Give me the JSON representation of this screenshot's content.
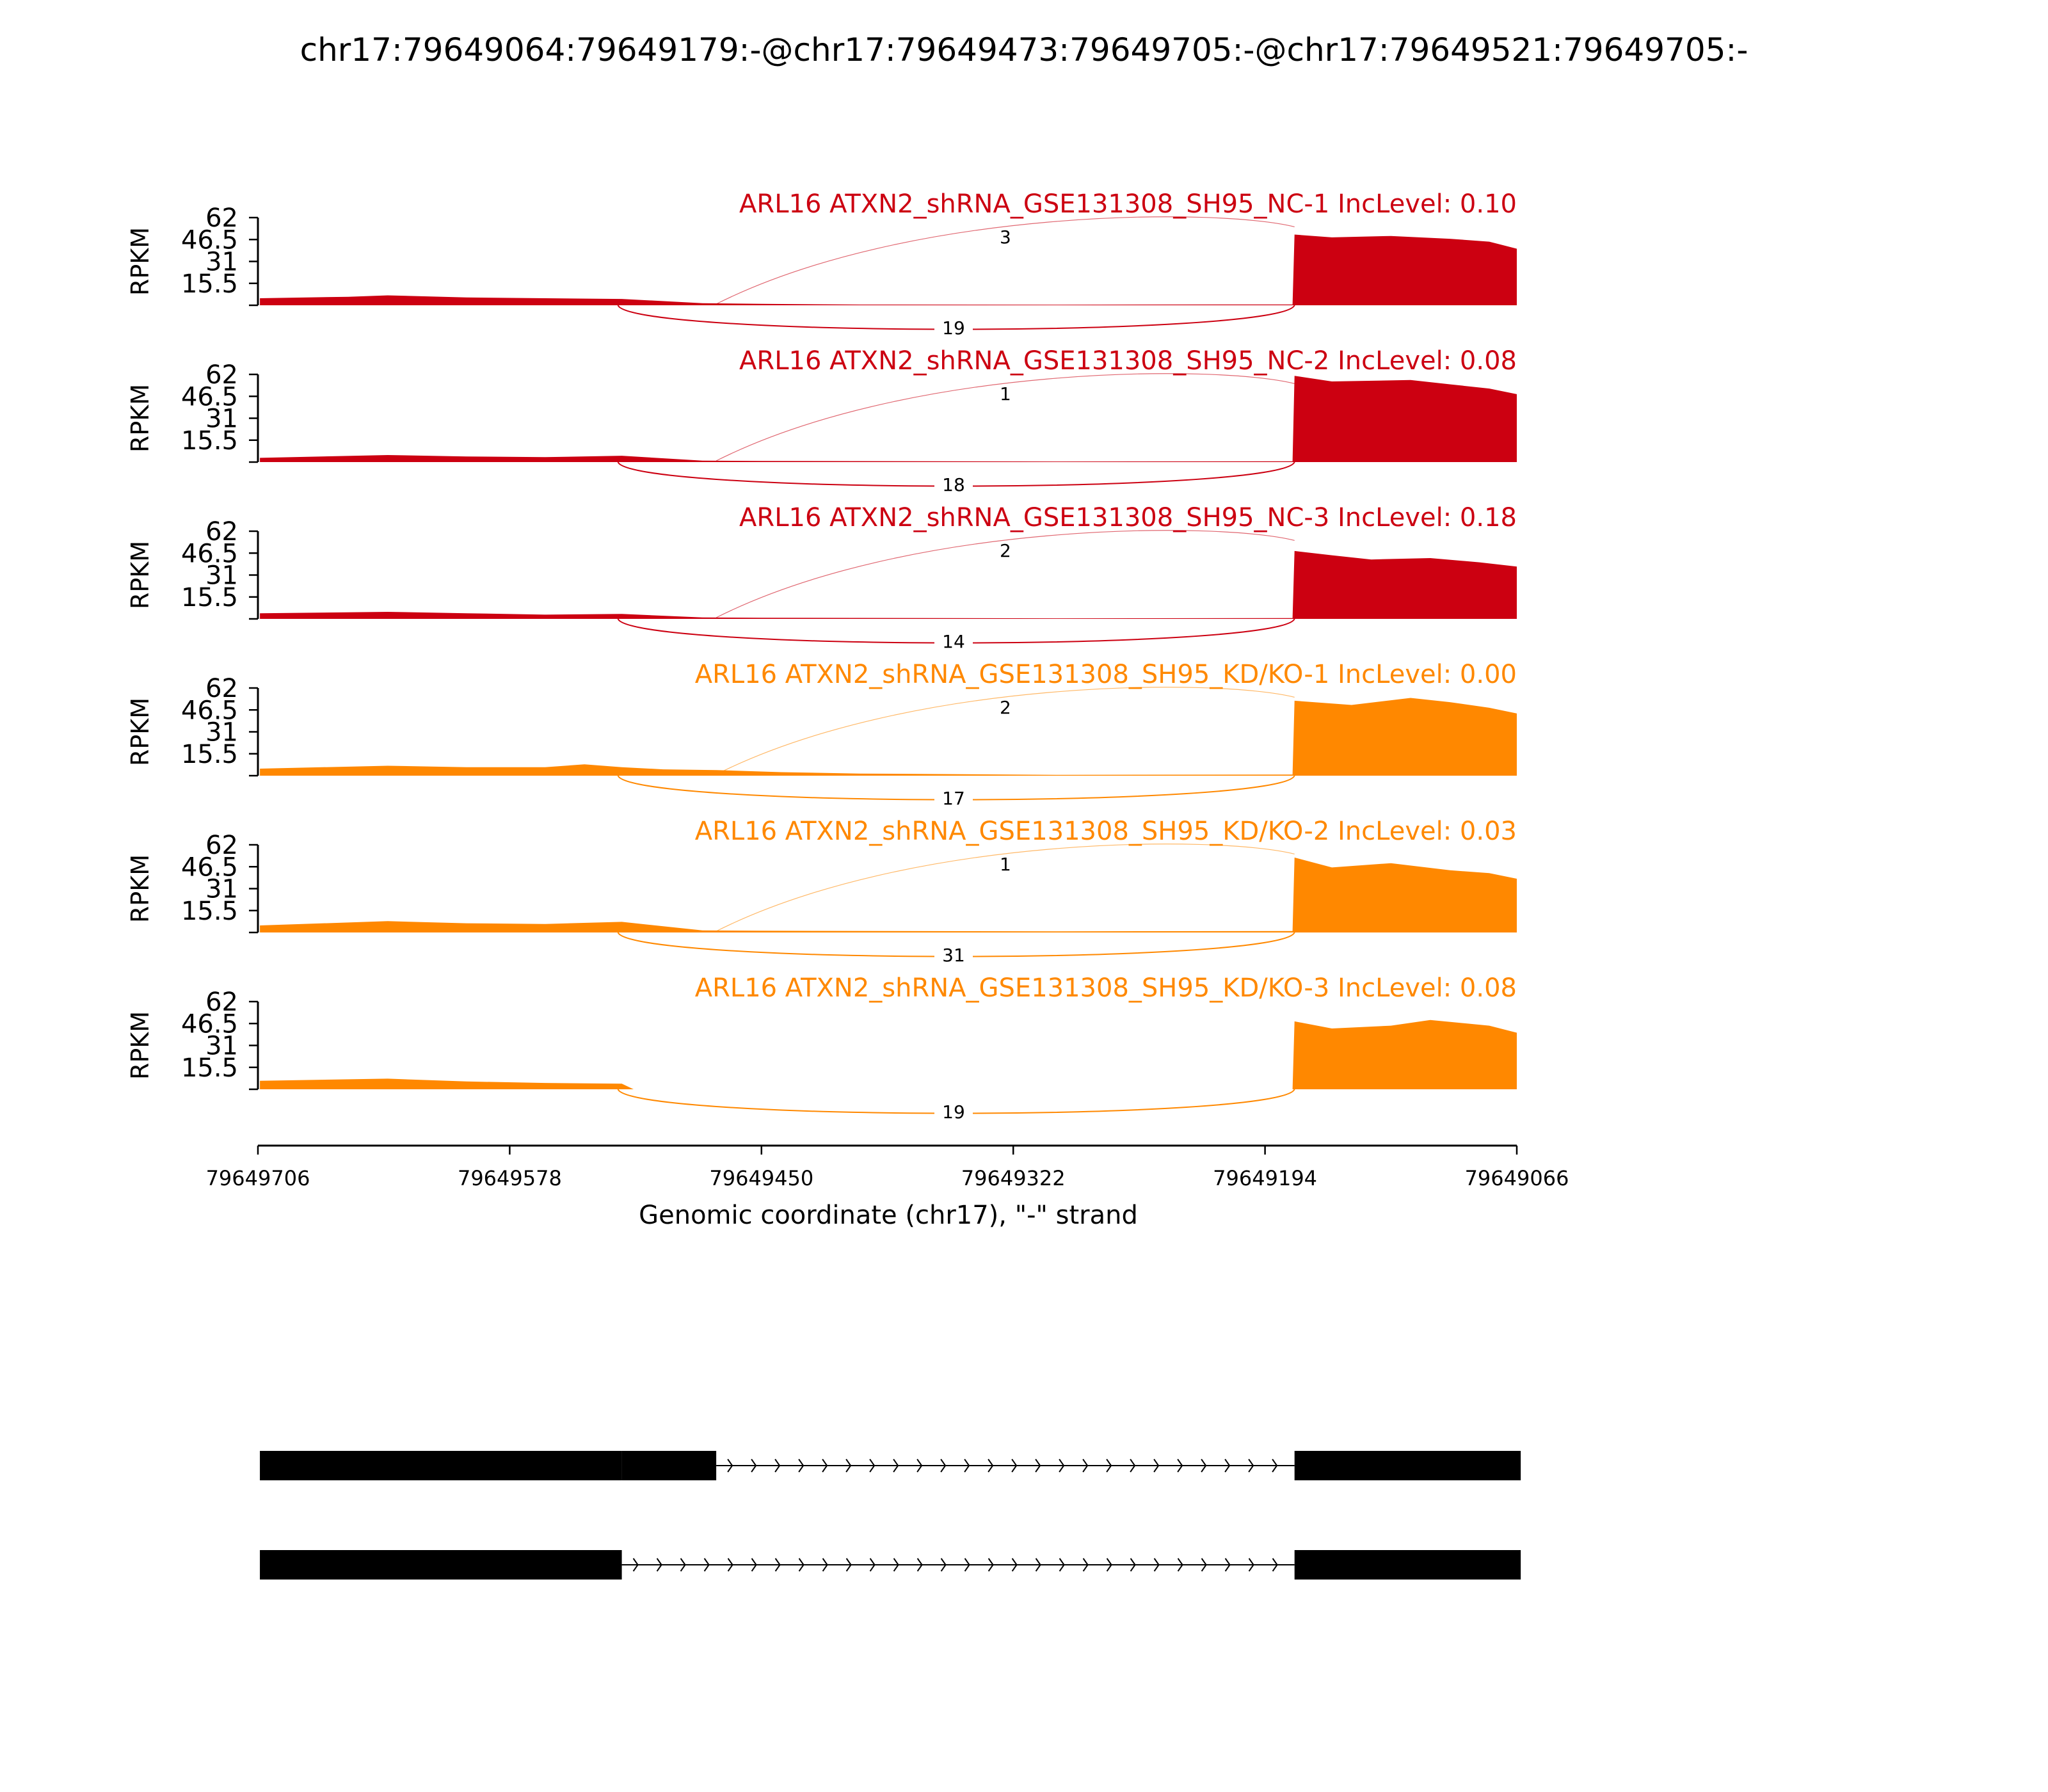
{
  "title": "chr17:79649064:79649179:-@chr17:79649473:79649705:-@chr17:79649521:79649705:-",
  "chart_data": {
    "type": "area",
    "title": "chr17:79649064:79649179:-@chr17:79649473:79649705:-@chr17:79649521:79649705:-",
    "ylabel": "RPKM",
    "xlabel": "Genomic coordinate (chr17), \"-\" strand",
    "x_range": [
      79649706,
      79649066
    ],
    "x_ticks": [
      "79649706",
      "79649578",
      "79649450",
      "79649322",
      "79649194",
      "79649066"
    ],
    "y_range": [
      0,
      62
    ],
    "y_ticks": [
      "62",
      "46.5",
      "31",
      "15.5"
    ],
    "exons": [
      {
        "start": 79649705,
        "end": 79649521
      },
      {
        "start": 79649521,
        "end": 79649473
      },
      {
        "start": 79649179,
        "end": 79649064
      }
    ],
    "tracks": [
      {
        "label": "ARL16 ATXN2_shRNA_GSE131308_SH95_NC-1 IncLevel: 0.10",
        "color": "#cc0011",
        "inclusion_junction_count": "3",
        "skipping_junction_count": "19",
        "coverage": [
          {
            "x": 79649705,
            "y": 5
          },
          {
            "x": 79649660,
            "y": 6
          },
          {
            "x": 79649640,
            "y": 7
          },
          {
            "x": 79649600,
            "y": 5.5
          },
          {
            "x": 79649560,
            "y": 5
          },
          {
            "x": 79649521,
            "y": 4.5
          },
          {
            "x": 79649480,
            "y": 1.5
          },
          {
            "x": 79649450,
            "y": 1
          },
          {
            "x": 79649400,
            "y": 0.5
          },
          {
            "x": 79649300,
            "y": 0.4
          },
          {
            "x": 79649200,
            "y": 0.6
          },
          {
            "x": 79649180,
            "y": 0.6
          },
          {
            "x": 79649179,
            "y": 50
          },
          {
            "x": 79649160,
            "y": 48
          },
          {
            "x": 79649130,
            "y": 49
          },
          {
            "x": 79649100,
            "y": 47
          },
          {
            "x": 79649080,
            "y": 45
          },
          {
            "x": 79649066,
            "y": 40
          }
        ]
      },
      {
        "label": "ARL16 ATXN2_shRNA_GSE131308_SH95_NC-2 IncLevel: 0.08",
        "color": "#cc0011",
        "inclusion_junction_count": "1",
        "skipping_junction_count": "18",
        "coverage": [
          {
            "x": 79649705,
            "y": 3
          },
          {
            "x": 79649640,
            "y": 5
          },
          {
            "x": 79649600,
            "y": 4
          },
          {
            "x": 79649560,
            "y": 3.5
          },
          {
            "x": 79649521,
            "y": 4.5
          },
          {
            "x": 79649480,
            "y": 1
          },
          {
            "x": 79649450,
            "y": 0.8
          },
          {
            "x": 79649300,
            "y": 0.4
          },
          {
            "x": 79649180,
            "y": 0.6
          },
          {
            "x": 79649179,
            "y": 61
          },
          {
            "x": 79649160,
            "y": 57
          },
          {
            "x": 79649120,
            "y": 58
          },
          {
            "x": 79649100,
            "y": 55
          },
          {
            "x": 79649080,
            "y": 52
          },
          {
            "x": 79649066,
            "y": 48
          }
        ]
      },
      {
        "label": "ARL16 ATXN2_shRNA_GSE131308_SH95_NC-3 IncLevel: 0.18",
        "color": "#cc0011",
        "inclusion_junction_count": "2",
        "skipping_junction_count": "14",
        "coverage": [
          {
            "x": 79649705,
            "y": 4
          },
          {
            "x": 79649640,
            "y": 5
          },
          {
            "x": 79649600,
            "y": 4
          },
          {
            "x": 79649560,
            "y": 3
          },
          {
            "x": 79649521,
            "y": 3.5
          },
          {
            "x": 79649480,
            "y": 1
          },
          {
            "x": 79649450,
            "y": 0.8
          },
          {
            "x": 79649300,
            "y": 0.4
          },
          {
            "x": 79649180,
            "y": 0.6
          },
          {
            "x": 79649179,
            "y": 48
          },
          {
            "x": 79649160,
            "y": 45
          },
          {
            "x": 79649140,
            "y": 42
          },
          {
            "x": 79649110,
            "y": 43
          },
          {
            "x": 79649085,
            "y": 40
          },
          {
            "x": 79649066,
            "y": 37
          }
        ]
      },
      {
        "label": "ARL16 ATXN2_shRNA_GSE131308_SH95_KD/KO-1 IncLevel: 0.00",
        "color": "#ff8800",
        "inclusion_junction_count": "2",
        "skipping_junction_count": "17",
        "coverage": [
          {
            "x": 79649705,
            "y": 5
          },
          {
            "x": 79649640,
            "y": 7
          },
          {
            "x": 79649600,
            "y": 6
          },
          {
            "x": 79649560,
            "y": 6
          },
          {
            "x": 79649540,
            "y": 8
          },
          {
            "x": 79649521,
            "y": 6
          },
          {
            "x": 79649500,
            "y": 4.5
          },
          {
            "x": 79649473,
            "y": 4
          },
          {
            "x": 79649440,
            "y": 2.5
          },
          {
            "x": 79649400,
            "y": 1.5
          },
          {
            "x": 79649300,
            "y": 0.6
          },
          {
            "x": 79649180,
            "y": 0.8
          },
          {
            "x": 79649179,
            "y": 53
          },
          {
            "x": 79649150,
            "y": 50
          },
          {
            "x": 79649120,
            "y": 55
          },
          {
            "x": 79649100,
            "y": 52
          },
          {
            "x": 79649080,
            "y": 48
          },
          {
            "x": 79649066,
            "y": 44
          }
        ]
      },
      {
        "label": "ARL16 ATXN2_shRNA_GSE131308_SH95_KD/KO-2 IncLevel: 0.03",
        "color": "#ff8800",
        "inclusion_junction_count": "1",
        "skipping_junction_count": "31",
        "coverage": [
          {
            "x": 79649705,
            "y": 5
          },
          {
            "x": 79649640,
            "y": 8
          },
          {
            "x": 79649600,
            "y": 6.5
          },
          {
            "x": 79649560,
            "y": 6
          },
          {
            "x": 79649521,
            "y": 7.5
          },
          {
            "x": 79649480,
            "y": 1.5
          },
          {
            "x": 79649450,
            "y": 1.2
          },
          {
            "x": 79649300,
            "y": 0.8
          },
          {
            "x": 79649180,
            "y": 1
          },
          {
            "x": 79649179,
            "y": 53
          },
          {
            "x": 79649160,
            "y": 46
          },
          {
            "x": 79649130,
            "y": 49
          },
          {
            "x": 79649100,
            "y": 44
          },
          {
            "x": 79649080,
            "y": 42
          },
          {
            "x": 79649066,
            "y": 38
          }
        ]
      },
      {
        "label": "ARL16 ATXN2_shRNA_GSE131308_SH95_KD/KO-3 IncLevel: 0.08",
        "color": "#ff8800",
        "inclusion_junction_count": "",
        "skipping_junction_count": "19",
        "coverage": [
          {
            "x": 79649705,
            "y": 6
          },
          {
            "x": 79649640,
            "y": 7.5
          },
          {
            "x": 79649600,
            "y": 5.5
          },
          {
            "x": 79649560,
            "y": 4.5
          },
          {
            "x": 79649521,
            "y": 4
          },
          {
            "x": 79649515,
            "y": 0
          },
          {
            "x": 79649180,
            "y": 0
          },
          {
            "x": 79649179,
            "y": 48
          },
          {
            "x": 79649160,
            "y": 43
          },
          {
            "x": 79649130,
            "y": 45
          },
          {
            "x": 79649110,
            "y": 49
          },
          {
            "x": 79649080,
            "y": 45
          },
          {
            "x": 79649066,
            "y": 40
          }
        ]
      }
    ],
    "isoforms": [
      {
        "exons": [
          [
            79649705,
            79649521
          ],
          [
            79649521,
            79649473
          ],
          [
            79649179,
            79649064
          ]
        ]
      },
      {
        "exons": [
          [
            79649705,
            79649521
          ],
          [
            79649179,
            79649064
          ]
        ]
      }
    ]
  }
}
